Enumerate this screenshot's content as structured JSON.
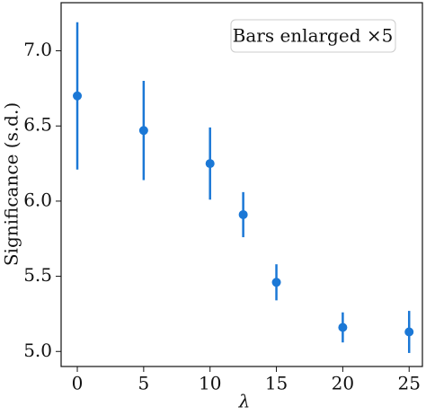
{
  "chart_data": {
    "type": "errorbar",
    "annotation": "Bars enlarged ×5",
    "x_label": "λ",
    "y_label": "Significance (s.d.)",
    "x": [
      0,
      5,
      10,
      12.5,
      15,
      20,
      25
    ],
    "values": [
      6.7,
      6.47,
      6.25,
      5.91,
      5.46,
      5.16,
      5.13
    ],
    "errors": [
      0.49,
      0.33,
      0.24,
      0.15,
      0.12,
      0.1,
      0.14
    ],
    "color": "#1b78d6",
    "xlim": [
      -1.22,
      26.0
    ],
    "ylim": [
      4.9,
      7.32
    ],
    "xticks": [
      0,
      5,
      10,
      15,
      20,
      25
    ],
    "yticks": [
      {
        "value": 5.0,
        "label": "5.0"
      },
      {
        "value": 5.5,
        "label": "5.5"
      },
      {
        "value": 6.0,
        "label": "6.0"
      },
      {
        "value": 6.5,
        "label": "6.5"
      },
      {
        "value": 7.0,
        "label": "7.0"
      }
    ]
  }
}
